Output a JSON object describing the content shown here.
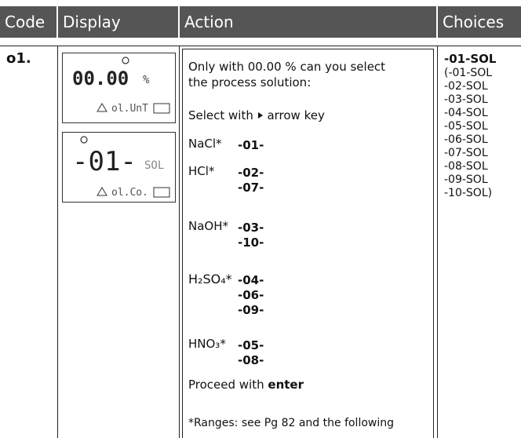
{
  "header": {
    "code": "Code",
    "display": "Display",
    "action": "Action",
    "choices": "Choices"
  },
  "row": {
    "code": "o1.",
    "displays": [
      {
        "main": "00.00",
        "unit": "%",
        "sub": "ol.UnT"
      },
      {
        "main": "-01-",
        "unit": "SOL",
        "sub": "ol.Co."
      }
    ],
    "action": {
      "intro": [
        "Only with 00.00 % can you select",
        "the process solution:"
      ],
      "select": [
        "Select with",
        "arrow key"
      ],
      "solutions": [
        {
          "name": "NaCl*",
          "codes": [
            "-01-"
          ]
        },
        {
          "name": "HCl*",
          "codes": [
            "-02-",
            "-07-"
          ]
        },
        {
          "name": "NaOH*",
          "codes": [
            "-03-",
            "-10-"
          ]
        },
        {
          "name": "H₂SO₄*",
          "codes": [
            "-04-",
            "-06-",
            "-09-"
          ]
        },
        {
          "name": "HNO₃*",
          "codes": [
            "-05-",
            "-08-"
          ]
        }
      ],
      "proceed": [
        "Proceed with",
        "enter"
      ],
      "footnote": "*Ranges: see Pg 82 and the following"
    },
    "choices": {
      "default": "-01-SOL",
      "options": [
        "(-01-SOL",
        "-02-SOL",
        "-03-SOL",
        "-04-SOL",
        "-05-SOL",
        "-06-SOL",
        "-07-SOL",
        "-08-SOL",
        "-09-SOL",
        "-10-SOL)"
      ]
    }
  }
}
